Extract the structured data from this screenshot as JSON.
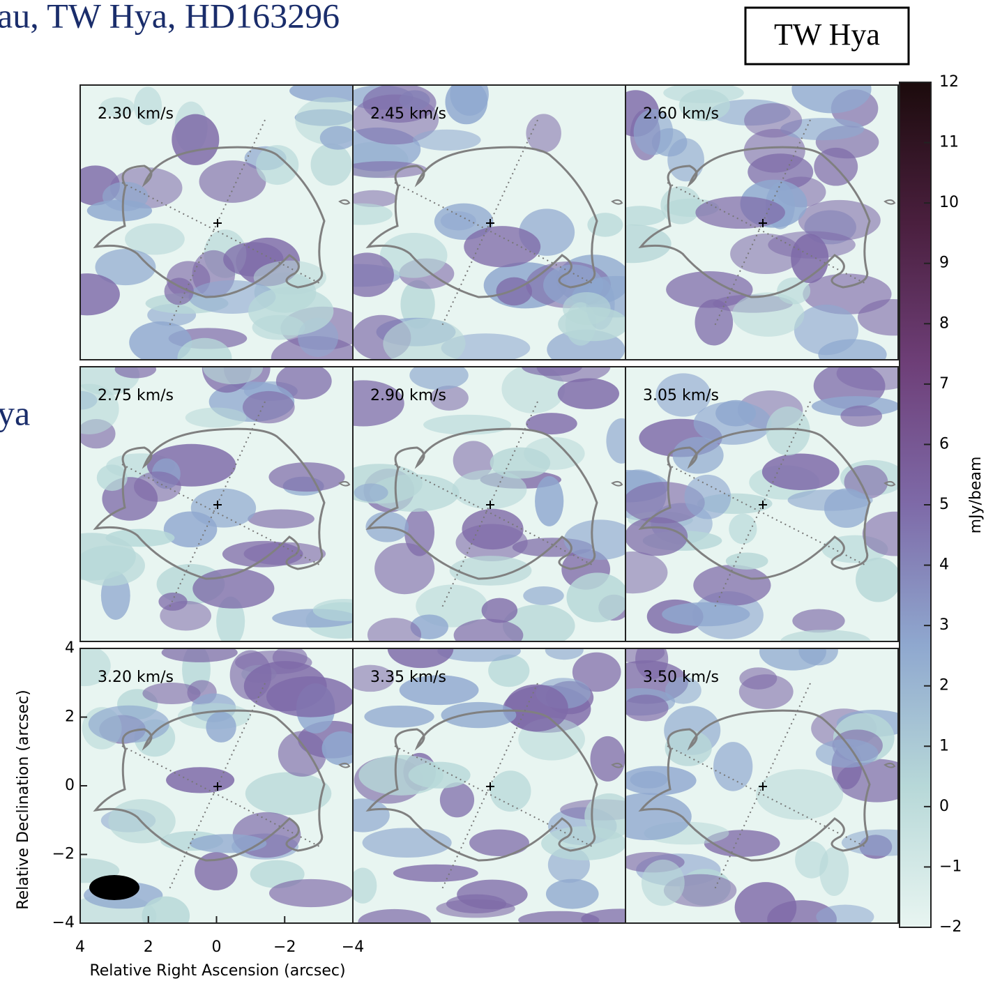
{
  "header": {
    "title": "au, TW Hya, HD163296",
    "label": "TW Hya",
    "side_text": "ya"
  },
  "chart_data": {
    "type": "channel_maps",
    "xlabel": "Relative Right Ascension (arcsec)",
    "ylabel": "Relative Declination (arcsec)",
    "panels": [
      "2.30 km/s",
      "2.45 km/s",
      "2.60 km/s",
      "2.75 km/s",
      "2.90 km/s",
      "3.05 km/s",
      "3.20 km/s",
      "3.35 km/s",
      "3.50 km/s"
    ],
    "xlim": [
      4,
      -4
    ],
    "xticks": [
      4,
      2,
      0,
      {
        "value": -2,
        "label": "−2"
      },
      {
        "value": -4,
        "label": "−4"
      }
    ],
    "ylim": [
      -4,
      4
    ],
    "yticks": [
      {
        "value": -4,
        "label": "−4"
      },
      {
        "value": -2,
        "label": "−2"
      },
      0,
      2,
      4
    ],
    "colorbar": {
      "label": "mJy/beam",
      "lim": [
        -2,
        12
      ],
      "ticks": [
        {
          "value": -2,
          "label": "−2"
        },
        {
          "value": -1,
          "label": "−1"
        },
        0,
        1,
        2,
        3,
        4,
        5,
        6,
        7,
        8,
        9,
        10,
        11,
        12
      ],
      "colors": [
        "#e8f5f1",
        "#b7d8d8",
        "#8fa8cf",
        "#7e6aa8",
        "#6e3f78",
        "#4a1f3e",
        "#1c0b0c"
      ]
    }
  }
}
